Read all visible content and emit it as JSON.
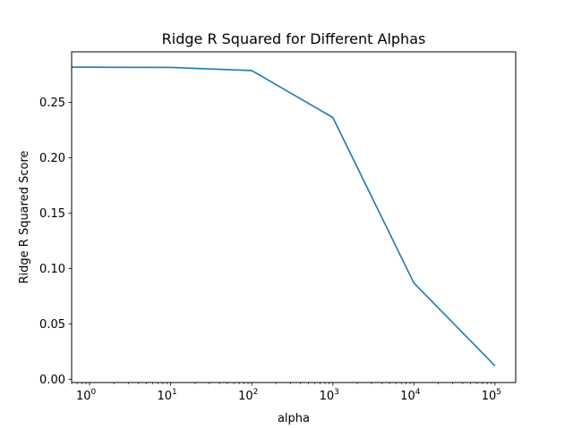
{
  "chart_data": {
    "type": "line",
    "title": "Ridge R Squared for Different Alphas",
    "xlabel": "alpha",
    "ylabel": "Ridge R Squared Score",
    "xscale": "log",
    "xlim": [
      0.6,
      180000
    ],
    "ylim": [
      -0.003,
      0.2955
    ],
    "x_ticks": [
      {
        "base": "10",
        "exp": "0",
        "value": 1
      },
      {
        "base": "10",
        "exp": "1",
        "value": 10
      },
      {
        "base": "10",
        "exp": "2",
        "value": 100
      },
      {
        "base": "10",
        "exp": "3",
        "value": 1000
      },
      {
        "base": "10",
        "exp": "4",
        "value": 10000
      },
      {
        "base": "10",
        "exp": "5",
        "value": 100000
      }
    ],
    "y_ticks": [
      {
        "label": "0.00",
        "value": 0.0
      },
      {
        "label": "0.05",
        "value": 0.05
      },
      {
        "label": "0.10",
        "value": 0.1
      },
      {
        "label": "0.15",
        "value": 0.15
      },
      {
        "label": "0.20",
        "value": 0.2
      },
      {
        "label": "0.25",
        "value": 0.25
      }
    ],
    "grid": false,
    "legend": "none",
    "series": [
      {
        "color": "#1f77b4",
        "x": [
          0.6,
          10,
          100,
          1000,
          10000,
          100000
        ],
        "y": [
          0.2817,
          0.2814,
          0.2786,
          0.2362,
          0.0868,
          0.0121
        ]
      }
    ]
  }
}
